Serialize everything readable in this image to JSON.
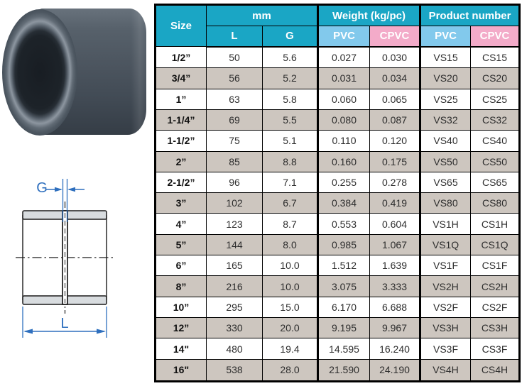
{
  "product_photo": {
    "description": "gray PVC socket coupling photo"
  },
  "diagram": {
    "g_label": "G",
    "l_label": "L",
    "dimension_color": "#2e6fbe",
    "line_color": "#1a1a1a",
    "wall_fill": "#d8dcdf"
  },
  "table": {
    "colors": {
      "header_teal": "#1aa6c5",
      "pvc_blue": "#82c9ec",
      "cpvc_pink": "#f3abc9",
      "row_gray": "#cdc6bf"
    },
    "header": {
      "size": "Size",
      "mm": "mm",
      "weight": "Weight (kg/pc)",
      "product_number": "Product number",
      "sub_l": "L",
      "sub_g": "G",
      "sub_pvc_weight": "PVC",
      "sub_cpvc_weight": "CPVC",
      "sub_pvc_product": "PVC",
      "sub_cpvc_product": "CPVC"
    },
    "rows": [
      {
        "size": "1/2”",
        "l": "50",
        "g": "5.6",
        "w_pvc": "0.027",
        "w_cpvc": "0.030",
        "pn_pvc": "VS15",
        "pn_cpvc": "CS15"
      },
      {
        "size": "3/4”",
        "l": "56",
        "g": "5.2",
        "w_pvc": "0.031",
        "w_cpvc": "0.034",
        "pn_pvc": "VS20",
        "pn_cpvc": "CS20"
      },
      {
        "size": "1”",
        "l": "63",
        "g": "5.8",
        "w_pvc": "0.060",
        "w_cpvc": "0.065",
        "pn_pvc": "VS25",
        "pn_cpvc": "CS25"
      },
      {
        "size": "1-1/4”",
        "l": "69",
        "g": "5.5",
        "w_pvc": "0.080",
        "w_cpvc": "0.087",
        "pn_pvc": "VS32",
        "pn_cpvc": "CS32"
      },
      {
        "size": "1-1/2”",
        "l": "75",
        "g": "5.1",
        "w_pvc": "0.110",
        "w_cpvc": "0.120",
        "pn_pvc": "VS40",
        "pn_cpvc": "CS40"
      },
      {
        "size": "2”",
        "l": "85",
        "g": "8.8",
        "w_pvc": "0.160",
        "w_cpvc": "0.175",
        "pn_pvc": "VS50",
        "pn_cpvc": "CS50"
      },
      {
        "size": "2-1/2”",
        "l": "96",
        "g": "7.1",
        "w_pvc": "0.255",
        "w_cpvc": "0.278",
        "pn_pvc": "VS65",
        "pn_cpvc": "CS65"
      },
      {
        "size": "3”",
        "l": "102",
        "g": "6.7",
        "w_pvc": "0.384",
        "w_cpvc": "0.419",
        "pn_pvc": "VS80",
        "pn_cpvc": "CS80"
      },
      {
        "size": "4”",
        "l": "123",
        "g": "8.7",
        "w_pvc": "0.553",
        "w_cpvc": "0.604",
        "pn_pvc": "VS1H",
        "pn_cpvc": "CS1H"
      },
      {
        "size": "5”",
        "l": "144",
        "g": "8.0",
        "w_pvc": "0.985",
        "w_cpvc": "1.067",
        "pn_pvc": "VS1Q",
        "pn_cpvc": "CS1Q"
      },
      {
        "size": "6”",
        "l": "165",
        "g": "10.0",
        "w_pvc": "1.512",
        "w_cpvc": "1.639",
        "pn_pvc": "VS1F",
        "pn_cpvc": "CS1F"
      },
      {
        "size": "8”",
        "l": "216",
        "g": "10.0",
        "w_pvc": "3.075",
        "w_cpvc": "3.333",
        "pn_pvc": "VS2H",
        "pn_cpvc": "CS2H"
      },
      {
        "size": "10”",
        "l": "295",
        "g": "15.0",
        "w_pvc": "6.170",
        "w_cpvc": "6.688",
        "pn_pvc": "VS2F",
        "pn_cpvc": "CS2F"
      },
      {
        "size": "12”",
        "l": "330",
        "g": "20.0",
        "w_pvc": "9.195",
        "w_cpvc": "9.967",
        "pn_pvc": "VS3H",
        "pn_cpvc": "CS3H"
      },
      {
        "size": "14\"",
        "l": "480",
        "g": "19.4",
        "w_pvc": "14.595",
        "w_cpvc": "16.240",
        "pn_pvc": "VS3F",
        "pn_cpvc": "CS3F"
      },
      {
        "size": "16\"",
        "l": "538",
        "g": "28.0",
        "w_pvc": "21.590",
        "w_cpvc": "24.190",
        "pn_pvc": "VS4H",
        "pn_cpvc": "CS4H"
      }
    ]
  }
}
